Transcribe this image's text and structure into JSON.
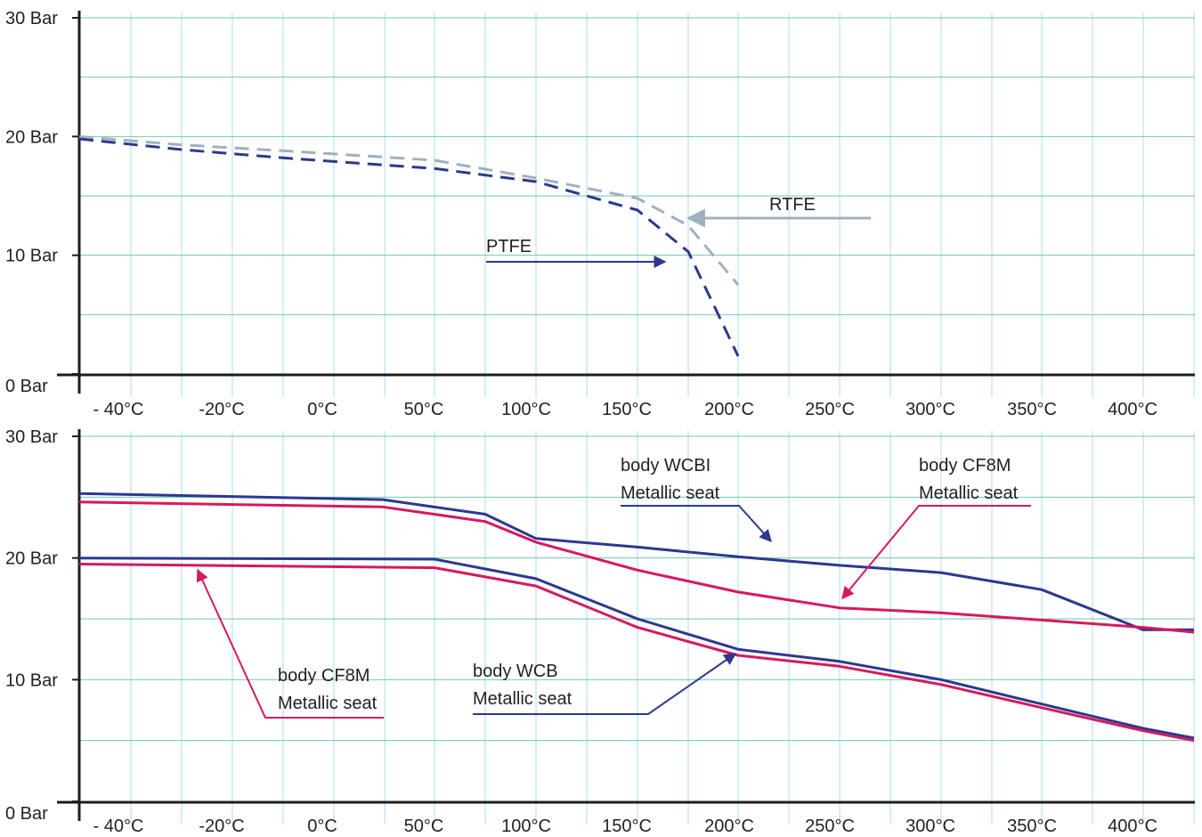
{
  "colors": {
    "grid_vertical": "#a9dde8",
    "grid_horizontal": "#6fc9a9",
    "axis": "#1d1d1b",
    "navy": "#2b3890",
    "grey_blue": "#9fb0c0",
    "crimson": "#d6195e"
  },
  "chart_data": [
    {
      "type": "line",
      "x_tick_labels": [
        "- 40°C",
        "-20°C",
        "0°C",
        "50°C",
        "100°C",
        "150°C",
        "200°C",
        "250°C",
        "300°C",
        "350°C",
        "400°C"
      ],
      "y_tick_labels": [
        "30 Bar",
        "20 Bar",
        "10 Bar",
        "0 Bar"
      ],
      "ylim": [
        0,
        30
      ],
      "grid": true,
      "series": [
        {
          "name": "RTFE",
          "color": "#9fb0c0",
          "dashed": true,
          "x": [
            "- 40°C",
            "-20°C",
            "0°C",
            "50°C",
            "100°C",
            "150°C",
            "175°C",
            "200°C"
          ],
          "y": [
            20,
            19.3,
            18.8,
            18.0,
            16.5,
            14.8,
            12.5,
            7.5
          ]
        },
        {
          "name": "PTFE",
          "color": "#2b3890",
          "dashed": true,
          "x": [
            "- 40°C",
            "-20°C",
            "0°C",
            "50°C",
            "100°C",
            "150°C",
            "175°C",
            "200°C"
          ],
          "y": [
            19.8,
            18.9,
            18.2,
            17.3,
            16.2,
            13.8,
            10.3,
            1.5
          ]
        }
      ]
    },
    {
      "type": "line",
      "x_tick_labels": [
        "- 40°C",
        "-20°C",
        "0°C",
        "50°C",
        "100°C",
        "150°C",
        "200°C",
        "250°C",
        "300°C",
        "350°C",
        "400°C"
      ],
      "y_tick_labels": [
        "30 Bar",
        "20 Bar",
        "10 Bar",
        "0 Bar"
      ],
      "ylim": [
        0,
        30
      ],
      "grid": true,
      "series": [
        {
          "name": "body WCBI\nMetallic seat",
          "color": "#2b3890",
          "x": [
            "- 40°C",
            "0°C",
            "50°C",
            "100°C",
            "150°C",
            "200°C",
            "250°C",
            "300°C",
            "350°C",
            "400°C",
            "425°C"
          ],
          "y": [
            25.3,
            24.8,
            23.6,
            21.6,
            20.9,
            20.1,
            19.4,
            18.8,
            17.4,
            14.1,
            14.1
          ],
          "x_offsets_note": ""
        },
        {
          "name": "body CF8M\nMetallic seat",
          "color": "#d6195e",
          "x": [
            "- 40°C",
            "0°C",
            "50°C",
            "100°C",
            "150°C",
            "200°C",
            "250°C",
            "300°C",
            "350°C",
            "400°C",
            "425°C"
          ],
          "y": [
            24.6,
            24.2,
            23.0,
            21.3,
            19.0,
            17.2,
            15.9,
            15.5,
            14.9,
            14.3,
            13.9
          ]
        },
        {
          "name": "body WCB\nMetallic seat",
          "color": "#2b3890",
          "x": [
            "- 40°C",
            "50°C",
            "100°C",
            "150°C",
            "200°C",
            "250°C",
            "300°C",
            "350°C",
            "400°C",
            "425°C"
          ],
          "y": [
            20.0,
            19.9,
            18.3,
            15.0,
            12.5,
            11.5,
            10.0,
            8.0,
            6.0,
            5.2
          ]
        },
        {
          "name": "body CF8M\nMetallic seat",
          "color": "#d6195e",
          "x": [
            "- 40°C",
            "50°C",
            "100°C",
            "150°C",
            "200°C",
            "250°C",
            "300°C",
            "350°C",
            "400°C",
            "425°C"
          ],
          "y": [
            19.5,
            19.2,
            17.7,
            14.3,
            12.0,
            11.1,
            9.6,
            7.7,
            5.8,
            5.0
          ]
        }
      ]
    }
  ],
  "annotations": {
    "top": {
      "rtfe": "RTFE",
      "ptfe": "PTFE"
    },
    "bottom": {
      "wcbi_line1": "body WCBI",
      "wcbi_line2": "Metallic seat",
      "cf8m_top_line1": "body CF8M",
      "cf8m_top_line2": "Metallic seat",
      "cf8m_bottom_line1": "body CF8M",
      "cf8m_bottom_line2": "Metallic seat",
      "wcb_line1": "body WCB",
      "wcb_line2": "Metallic seat"
    }
  }
}
